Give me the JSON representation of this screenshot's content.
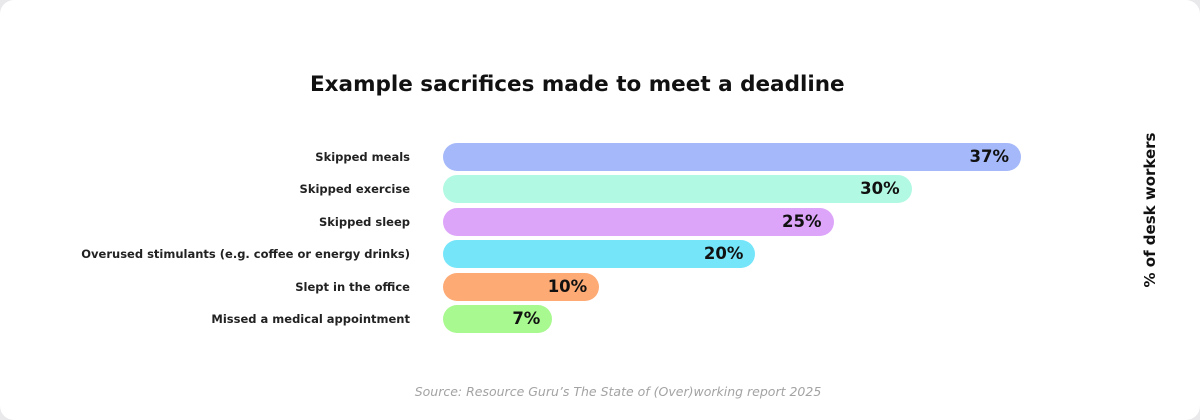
{
  "chart_data": {
    "type": "bar",
    "orientation": "horizontal",
    "title": "Example sacrifices made to meet a deadline",
    "ylabel": "% of desk workers",
    "categories": [
      "Skipped meals",
      "Skipped exercise",
      "Skipped sleep",
      "Overused stimulants (e.g. coffee or energy drinks)",
      "Slept in the office",
      "Missed a medical appointment"
    ],
    "values": [
      37,
      30,
      25,
      20,
      10,
      7
    ],
    "value_labels": [
      "37%",
      "30%",
      "25%",
      "20%",
      "10%",
      "7%"
    ],
    "colors": [
      "#a5b8f9",
      "#b1f9e2",
      "#dda5f9",
      "#75e5fa",
      "#fdaa75",
      "#a8f98f"
    ],
    "xlim": [
      0,
      37
    ],
    "grid": false,
    "legend": "none"
  },
  "source": "Source: Resource Guru’s The State of (Over)working report 2025"
}
